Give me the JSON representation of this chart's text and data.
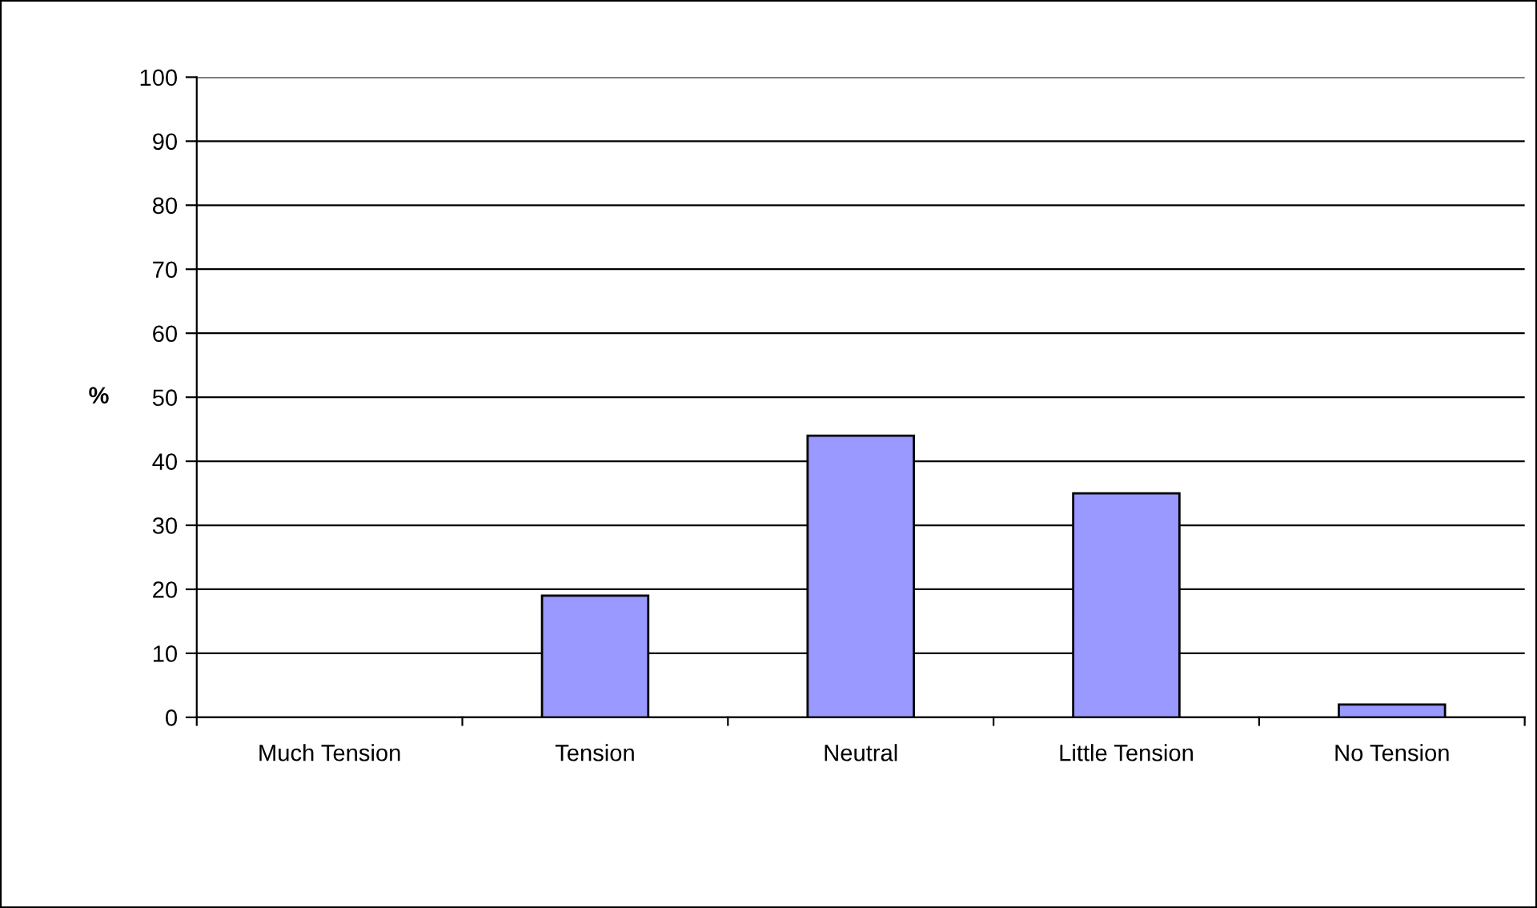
{
  "chart_data": {
    "type": "bar",
    "ylabel": "%",
    "categories": [
      "Much Tension",
      "Tension",
      "Neutral",
      "Little Tension",
      "No Tension"
    ],
    "values": [
      0,
      19,
      44,
      35,
      2
    ],
    "color": "#9999ff",
    "ylim": [
      0,
      100
    ],
    "yticks": [
      0,
      10,
      20,
      30,
      40,
      50,
      60,
      70,
      80,
      90,
      100
    ],
    "grid": "y",
    "legend": false
  }
}
